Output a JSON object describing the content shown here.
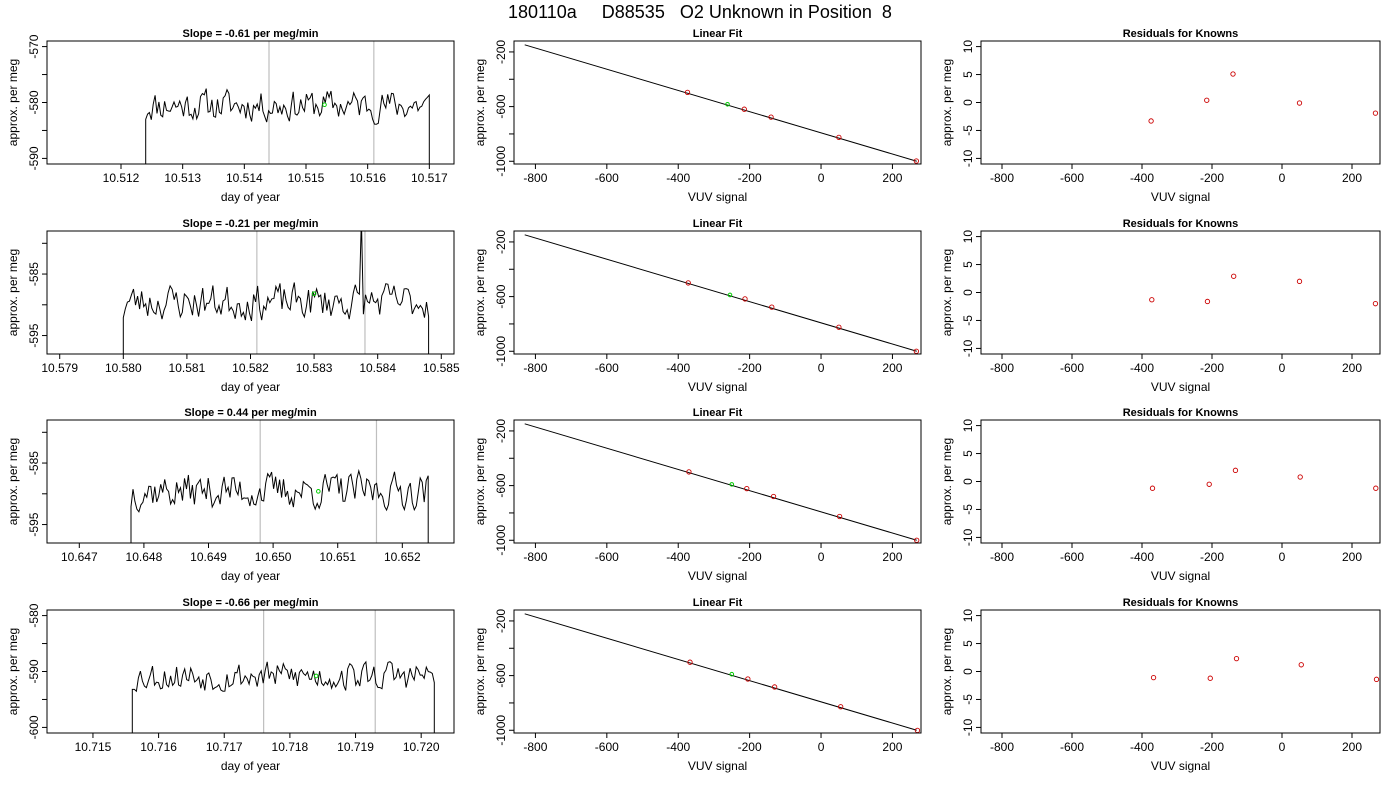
{
  "page_title": "180110a     D88535   O2 Unknown in Position  8",
  "style": {
    "known_color": "#cc0000",
    "unknown_color": "#00cc00",
    "line_color": "#000000",
    "marker_line_color": "#bfbfbf"
  },
  "chart_data": [
    {
      "type": "line",
      "row": 0,
      "title": "Slope =  -0.61  per meg/min",
      "xlabel": "day of year",
      "ylabel": "approx. per meg",
      "xlim": [
        10.5108,
        10.5174
      ],
      "ylim": [
        -591,
        -569
      ],
      "xticks": [
        10.512,
        10.513,
        10.514,
        10.515,
        10.516,
        10.517
      ],
      "xtick_labels": [
        "10.512",
        "10.513",
        "10.514",
        "10.515",
        "10.516",
        "10.517"
      ],
      "yticks": [
        -590,
        -585,
        -580,
        -575,
        -570
      ],
      "ytick_labels": [
        "-590",
        "",
        "-580",
        "",
        "-570"
      ],
      "vlines": [
        10.5144,
        10.5161
      ],
      "series_start": 10.5124,
      "series_end": 10.517,
      "base": -580.5,
      "amplitude": 2.5,
      "seed": 11,
      "ends": [
        -600,
        -600
      ],
      "unknown_point": {
        "x": 10.5153,
        "y": -580.4
      }
    },
    {
      "type": "scatter",
      "row": 0,
      "title": "Linear Fit",
      "xlabel": "VUV signal",
      "ylabel": "approx. per meg",
      "xlim": [
        -860,
        280
      ],
      "ylim": [
        -1020,
        -120
      ],
      "xticks": [
        -800,
        -600,
        -400,
        -200,
        0,
        200
      ],
      "xtick_labels": [
        "-800",
        "-600",
        "-400",
        "-200",
        "0",
        "200"
      ],
      "yticks": [
        -1000,
        -800,
        -600,
        -400,
        -200
      ],
      "ytick_labels": [
        "-1000",
        "",
        "-600",
        "",
        "-200"
      ],
      "fit_line": {
        "x": [
          -830,
          268
        ],
        "y": [
          -148,
          -1000
        ]
      },
      "knowns": [
        {
          "x": -374,
          "y": -496
        },
        {
          "x": -215,
          "y": -619
        },
        {
          "x": -140,
          "y": -677
        },
        {
          "x": 50,
          "y": -825
        },
        {
          "x": 267,
          "y": -998
        }
      ],
      "unknown_point": {
        "x": -262,
        "y": -583
      }
    },
    {
      "type": "scatter",
      "row": 0,
      "title": "Residuals for Knowns",
      "xlabel": "VUV signal",
      "ylabel": "approx. per meg",
      "xlim": [
        -860,
        280
      ],
      "ylim": [
        -11,
        11
      ],
      "xticks": [
        -800,
        -600,
        -400,
        -200,
        0,
        200
      ],
      "xtick_labels": [
        "-800",
        "-600",
        "-400",
        "-200",
        "0",
        "200"
      ],
      "yticks": [
        -10,
        -5,
        0,
        5,
        10
      ],
      "ytick_labels": [
        "-10",
        "-5",
        "0",
        "5",
        "10"
      ],
      "knowns": [
        {
          "x": -374,
          "y": -3.3
        },
        {
          "x": -215,
          "y": 0.4
        },
        {
          "x": -140,
          "y": 5.1
        },
        {
          "x": 50,
          "y": -0.1
        },
        {
          "x": 267,
          "y": -1.9
        }
      ]
    },
    {
      "type": "line",
      "row": 1,
      "title": "Slope =  -0.21  per meg/min",
      "xlabel": "day of year",
      "ylabel": "approx. per meg",
      "xlim": [
        10.5788,
        10.5852
      ],
      "ylim": [
        -598,
        -578
      ],
      "xticks": [
        10.579,
        10.58,
        10.581,
        10.582,
        10.583,
        10.584,
        10.585
      ],
      "xtick_labels": [
        "10.579",
        "10.580",
        "10.581",
        "10.582",
        "10.583",
        "10.584",
        "10.585"
      ],
      "yticks": [
        -595,
        -590,
        -585,
        -580
      ],
      "ytick_labels": [
        "-595",
        "",
        "-585",
        ""
      ],
      "vlines": [
        10.5821,
        10.5838
      ],
      "series_start": 10.58,
      "series_end": 10.5848,
      "base": -589.5,
      "amplitude": 2.6,
      "seed": 23,
      "ends": [
        -605,
        -605
      ],
      "spike": {
        "x": 10.58375,
        "y": -576
      },
      "unknown_point": {
        "x": 10.583,
        "y": -588.2
      }
    },
    {
      "type": "scatter",
      "row": 1,
      "title": "Linear Fit",
      "xlabel": "VUV signal",
      "ylabel": "approx. per meg",
      "xlim": [
        -860,
        280
      ],
      "ylim": [
        -1020,
        -120
      ],
      "xticks": [
        -800,
        -600,
        -400,
        -200,
        0,
        200
      ],
      "xtick_labels": [
        "-800",
        "-600",
        "-400",
        "-200",
        "0",
        "200"
      ],
      "yticks": [
        -1000,
        -800,
        -600,
        -400,
        -200
      ],
      "ytick_labels": [
        "-1000",
        "",
        "-600",
        "",
        "-200"
      ],
      "fit_line": {
        "x": [
          -830,
          268
        ],
        "y": [
          -148,
          -1000
        ]
      },
      "knowns": [
        {
          "x": -372,
          "y": -500
        },
        {
          "x": -213,
          "y": -617
        },
        {
          "x": -138,
          "y": -677
        },
        {
          "x": 50,
          "y": -824
        },
        {
          "x": 267,
          "y": -1000
        }
      ],
      "unknown_point": {
        "x": -255,
        "y": -588
      }
    },
    {
      "type": "scatter",
      "row": 1,
      "title": "Residuals for Knowns",
      "xlabel": "VUV signal",
      "ylabel": "approx. per meg",
      "xlim": [
        -860,
        280
      ],
      "ylim": [
        -11,
        11
      ],
      "xticks": [
        -800,
        -600,
        -400,
        -200,
        0,
        200
      ],
      "xtick_labels": [
        "-800",
        "-600",
        "-400",
        "-200",
        "0",
        "200"
      ],
      "yticks": [
        -10,
        -5,
        0,
        5,
        10
      ],
      "ytick_labels": [
        "-10",
        "-5",
        "0",
        "5",
        "10"
      ],
      "knowns": [
        {
          "x": -372,
          "y": -1.3
        },
        {
          "x": -213,
          "y": -1.6
        },
        {
          "x": -138,
          "y": 2.9
        },
        {
          "x": 50,
          "y": 2.0
        },
        {
          "x": 267,
          "y": -2.0
        }
      ]
    },
    {
      "type": "line",
      "row": 2,
      "title": "Slope =  0.44  per meg/min",
      "xlabel": "day of year",
      "ylabel": "approx. per meg",
      "xlim": [
        10.6465,
        10.6528
      ],
      "ylim": [
        -598,
        -578
      ],
      "xticks": [
        10.647,
        10.648,
        10.649,
        10.65,
        10.651,
        10.652
      ],
      "xtick_labels": [
        "10.647",
        "10.648",
        "10.649",
        "10.650",
        "10.651",
        "10.652"
      ],
      "yticks": [
        -595,
        -590,
        -585,
        -580
      ],
      "ytick_labels": [
        "-595",
        "",
        "-585",
        ""
      ],
      "vlines": [
        10.6498,
        10.6516
      ],
      "series_start": 10.6478,
      "series_end": 10.6524,
      "base": -589.5,
      "amplitude": 2.6,
      "seed": 37,
      "ends": [
        -604,
        -604
      ],
      "unknown_point": {
        "x": 10.6507,
        "y": -589.6
      }
    },
    {
      "type": "scatter",
      "row": 2,
      "title": "Linear Fit",
      "xlabel": "VUV signal",
      "ylabel": "approx. per meg",
      "xlim": [
        -860,
        280
      ],
      "ylim": [
        -1020,
        -120
      ],
      "xticks": [
        -800,
        -600,
        -400,
        -200,
        0,
        200
      ],
      "xtick_labels": [
        "-800",
        "-600",
        "-400",
        "-200",
        "0",
        "200"
      ],
      "yticks": [
        -1000,
        -800,
        -600,
        -400,
        -200
      ],
      "ytick_labels": [
        "-1000",
        "",
        "-600",
        "",
        "-200"
      ],
      "fit_line": {
        "x": [
          -830,
          268
        ],
        "y": [
          -148,
          -1000
        ]
      },
      "knowns": [
        {
          "x": -370,
          "y": -500
        },
        {
          "x": -208,
          "y": -622
        },
        {
          "x": -133,
          "y": -680
        },
        {
          "x": 52,
          "y": -826
        },
        {
          "x": 268,
          "y": -1000
        }
      ],
      "unknown_point": {
        "x": -250,
        "y": -591
      }
    },
    {
      "type": "scatter",
      "row": 2,
      "title": "Residuals for Knowns",
      "xlabel": "VUV signal",
      "ylabel": "approx. per meg",
      "xlim": [
        -860,
        280
      ],
      "ylim": [
        -11,
        11
      ],
      "xticks": [
        -800,
        -600,
        -400,
        -200,
        0,
        200
      ],
      "xtick_labels": [
        "-800",
        "-600",
        "-400",
        "-200",
        "0",
        "200"
      ],
      "yticks": [
        -10,
        -5,
        0,
        5,
        10
      ],
      "ytick_labels": [
        "-10",
        "-5",
        "0",
        "5",
        "10"
      ],
      "knowns": [
        {
          "x": -370,
          "y": -1.2
        },
        {
          "x": -208,
          "y": -0.5
        },
        {
          "x": -133,
          "y": 2.0
        },
        {
          "x": 52,
          "y": 0.8
        },
        {
          "x": 268,
          "y": -1.2
        }
      ]
    },
    {
      "type": "line",
      "row": 3,
      "title": "Slope =  -0.66  per meg/min",
      "xlabel": "day of year",
      "ylabel": "approx. per meg",
      "xlim": [
        10.7143,
        10.7205
      ],
      "ylim": [
        -601,
        -579
      ],
      "xticks": [
        10.715,
        10.716,
        10.717,
        10.718,
        10.719,
        10.72
      ],
      "xtick_labels": [
        "10.715",
        "10.716",
        "10.717",
        "10.718",
        "10.719",
        "10.720"
      ],
      "yticks": [
        -600,
        -595,
        -590,
        -585,
        -580
      ],
      "ytick_labels": [
        "-600",
        "",
        "-590",
        "",
        "-580"
      ],
      "vlines": [
        10.7176,
        10.7193
      ],
      "series_start": 10.7156,
      "series_end": 10.7202,
      "base": -590.8,
      "amplitude": 2.4,
      "seed": 53,
      "ends": [
        -606,
        -606
      ],
      "unknown_point": {
        "x": 10.7184,
        "y": -590.8
      }
    },
    {
      "type": "scatter",
      "row": 3,
      "title": "Linear Fit",
      "xlabel": "VUV signal",
      "ylabel": "approx. per meg",
      "xlim": [
        -860,
        280
      ],
      "ylim": [
        -1020,
        -120
      ],
      "xticks": [
        -800,
        -600,
        -400,
        -200,
        0,
        200
      ],
      "xtick_labels": [
        "-800",
        "-600",
        "-400",
        "-200",
        "0",
        "200"
      ],
      "yticks": [
        -1000,
        -800,
        -600,
        -400,
        -200
      ],
      "ytick_labels": [
        "-1000",
        "",
        "-600",
        "",
        "-200"
      ],
      "fit_line": {
        "x": [
          -830,
          268
        ],
        "y": [
          -148,
          -1000
        ]
      },
      "knowns": [
        {
          "x": -367,
          "y": -502
        },
        {
          "x": -205,
          "y": -625
        },
        {
          "x": -130,
          "y": -683
        },
        {
          "x": 55,
          "y": -828
        },
        {
          "x": 270,
          "y": -1001
        }
      ],
      "unknown_point": {
        "x": -250,
        "y": -590
      }
    },
    {
      "type": "scatter",
      "row": 3,
      "title": "Residuals for Knowns",
      "xlabel": "VUV signal",
      "ylabel": "approx. per meg",
      "xlim": [
        -860,
        280
      ],
      "ylim": [
        -11,
        11
      ],
      "xticks": [
        -800,
        -600,
        -400,
        -200,
        0,
        200
      ],
      "xtick_labels": [
        "-800",
        "-600",
        "-400",
        "-200",
        "0",
        "200"
      ],
      "yticks": [
        -10,
        -5,
        0,
        5,
        10
      ],
      "ytick_labels": [
        "-10",
        "-5",
        "0",
        "5",
        "10"
      ],
      "knowns": [
        {
          "x": -367,
          "y": -1.1
        },
        {
          "x": -205,
          "y": -1.2
        },
        {
          "x": -130,
          "y": 2.3
        },
        {
          "x": 55,
          "y": 1.2
        },
        {
          "x": 270,
          "y": -1.4
        }
      ]
    }
  ]
}
